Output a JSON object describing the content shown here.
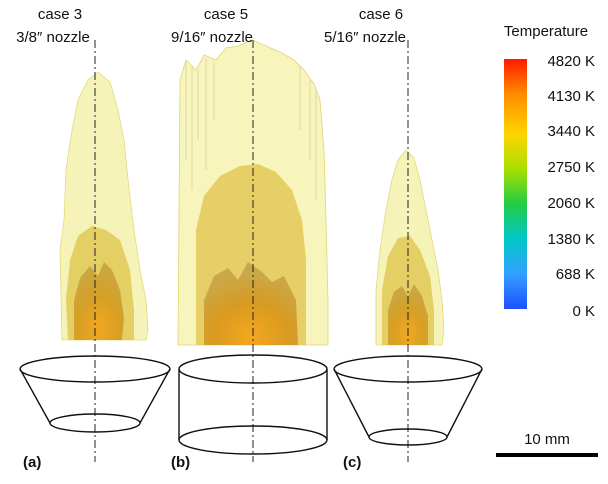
{
  "panels": [
    {
      "label": "(a)",
      "case": "case 3",
      "nozzle": "3/8″ nozzle"
    },
    {
      "label": "(b)",
      "case": "case 5",
      "nozzle": "9/16″ nozzle"
    },
    {
      "label": "(c)",
      "case": "case 6",
      "nozzle": "5/16″ nozzle"
    }
  ],
  "colorbar": {
    "title": "Temperature",
    "ticks": [
      "4820 K",
      "4130 K",
      "3440 K",
      "2750 K",
      "2060 K",
      "1380 K",
      "688 K",
      "0 K"
    ],
    "colors": [
      "#ff1a00",
      "#ff8c00",
      "#ffd400",
      "#a8e000",
      "#22cc44",
      "#00c8c8",
      "#33a0ff",
      "#1e50ff"
    ]
  },
  "scalebar": {
    "label": "10 mm"
  },
  "colors": {
    "flame_outer": "#f3efa0",
    "flame_mid": "#e0c650",
    "flame_core": "#d79a1c",
    "flame_hot": "#f0a020"
  }
}
